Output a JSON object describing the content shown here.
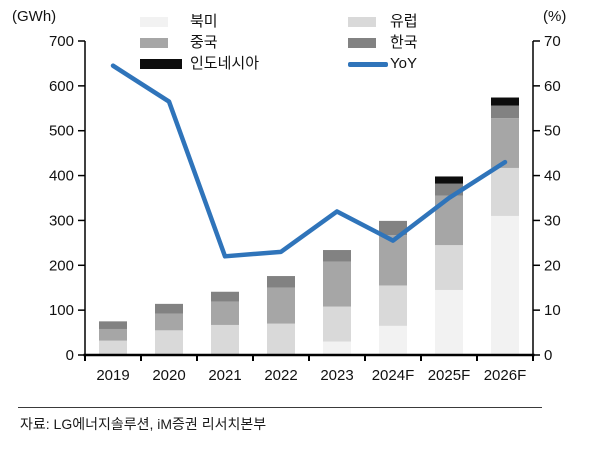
{
  "source": "자료: LG에너지솔루션, iM증권 리서치본부",
  "legend": [
    {
      "label": "북미",
      "color": "#f2f2f2",
      "type": "box"
    },
    {
      "label": "유럽",
      "color": "#d9d9d9",
      "type": "box"
    },
    {
      "label": "중국",
      "color": "#a6a6a6",
      "type": "box"
    },
    {
      "label": "한국",
      "color": "#828282",
      "type": "box"
    },
    {
      "label": "인도네시아",
      "color": "#0d0d0d",
      "type": "box"
    },
    {
      "label": "YoY",
      "color": "#2f74ba",
      "type": "line"
    }
  ],
  "chart_data": {
    "type": "bar",
    "subtype": "stacked-bars-with-line",
    "title": "",
    "categories": [
      "2019",
      "2020",
      "2021",
      "2022",
      "2023",
      "2024F",
      "2025F",
      "2026F"
    ],
    "bar_series": [
      {
        "name": "북미",
        "axis": "left",
        "color": "#f2f2f2",
        "values": [
          0,
          0,
          0,
          0,
          30,
          65,
          145,
          310
        ]
      },
      {
        "name": "유럽",
        "axis": "left",
        "color": "#d9d9d9",
        "values": [
          32,
          55,
          67,
          70,
          78,
          90,
          100,
          107
        ]
      },
      {
        "name": "중국",
        "axis": "left",
        "color": "#a6a6a6",
        "values": [
          26,
          37,
          52,
          80,
          100,
          112,
          110,
          111
        ]
      },
      {
        "name": "한국",
        "axis": "left",
        "color": "#828282",
        "values": [
          17,
          22,
          22,
          26,
          26,
          32,
          27,
          28
        ]
      },
      {
        "name": "인도네시아",
        "axis": "left",
        "color": "#0d0d0d",
        "values": [
          0,
          0,
          0,
          0,
          0,
          0,
          16,
          18
        ]
      }
    ],
    "line_series": {
      "name": "YoY",
      "axis": "right",
      "color": "#2f74ba",
      "values": [
        64.5,
        56.5,
        22,
        23,
        32,
        25.5,
        35,
        43
      ]
    },
    "bar_totals": [
      75,
      114,
      141,
      176,
      234,
      299,
      398,
      574
    ],
    "left_axis": {
      "unit": "(GWh)",
      "min": 0,
      "max": 700,
      "step": 100
    },
    "right_axis": {
      "unit": "(%)",
      "min": 0,
      "max": 70,
      "step": 10
    },
    "grid": false,
    "legend_position": "top-center-two-columns"
  }
}
